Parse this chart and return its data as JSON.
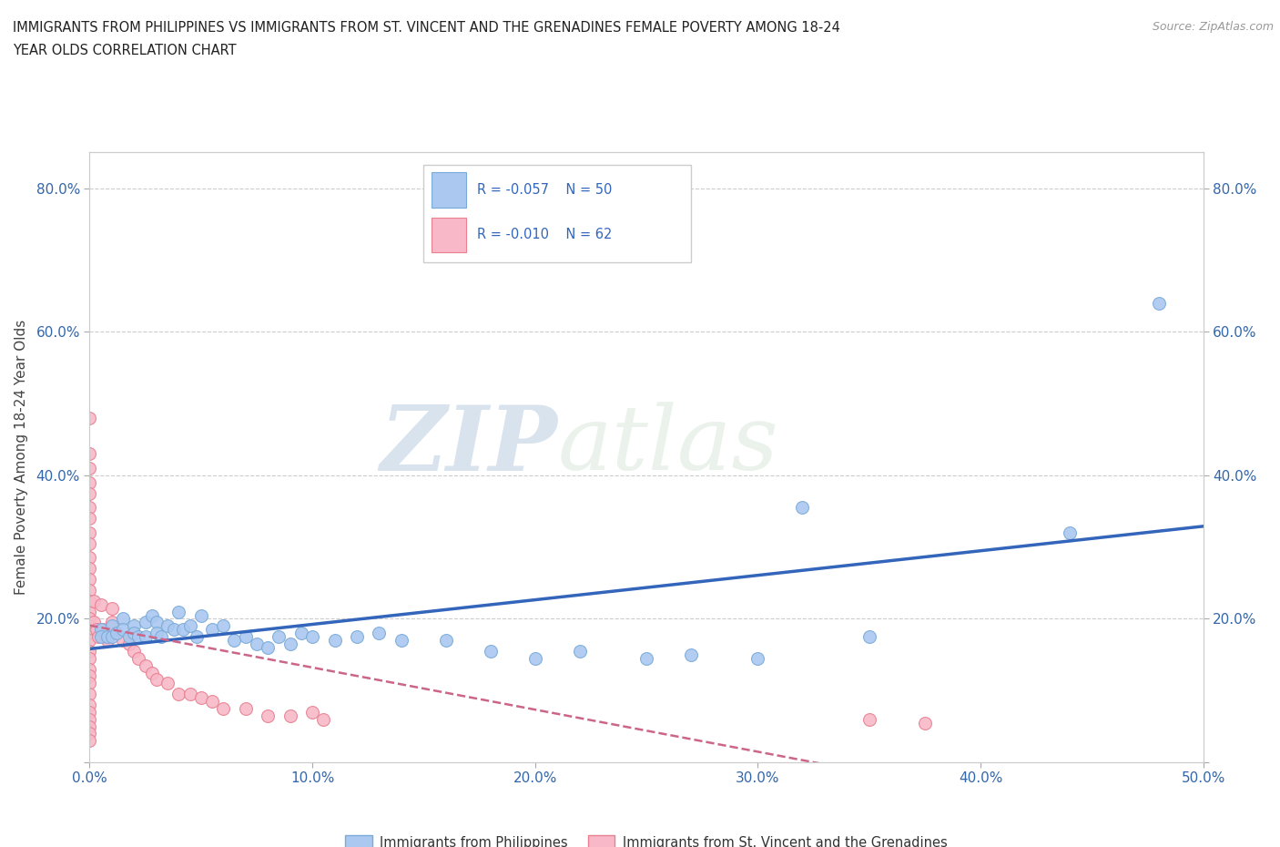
{
  "title_line1": "IMMIGRANTS FROM PHILIPPINES VS IMMIGRANTS FROM ST. VINCENT AND THE GRENADINES FEMALE POVERTY AMONG 18-24",
  "title_line2": "YEAR OLDS CORRELATION CHART",
  "source": "Source: ZipAtlas.com",
  "ylabel": "Female Poverty Among 18-24 Year Olds",
  "xlim": [
    0.0,
    0.5
  ],
  "ylim": [
    0.0,
    0.85
  ],
  "xticks": [
    0.0,
    0.1,
    0.2,
    0.3,
    0.4,
    0.5
  ],
  "yticks": [
    0.0,
    0.2,
    0.4,
    0.6,
    0.8
  ],
  "xticklabels": [
    "0.0%",
    "10.0%",
    "20.0%",
    "30.0%",
    "40.0%",
    "50.0%"
  ],
  "yticklabels": [
    "",
    "20.0%",
    "40.0%",
    "60.0%",
    "80.0%"
  ],
  "right_yticklabels": [
    "",
    "20.0%",
    "40.0%",
    "60.0%",
    "80.0%"
  ],
  "philippine_color": "#aac8f0",
  "philippine_edge": "#7aaad8",
  "stv_color": "#f8b8c8",
  "stv_edge": "#e88090",
  "trend_blue": "#3366bb",
  "trend_pink": "#cc6688",
  "R_phil": -0.057,
  "N_phil": 50,
  "R_stv": -0.01,
  "N_stv": 62,
  "watermark_zip": "ZIP",
  "watermark_atlas": "atlas",
  "legend_color": "#3366bb",
  "phil_x": [
    0.005,
    0.005,
    0.008,
    0.01,
    0.01,
    0.012,
    0.015,
    0.015,
    0.018,
    0.02,
    0.02,
    0.022,
    0.025,
    0.025,
    0.028,
    0.03,
    0.03,
    0.032,
    0.035,
    0.038,
    0.04,
    0.042,
    0.045,
    0.048,
    0.05,
    0.055,
    0.06,
    0.065,
    0.07,
    0.075,
    0.08,
    0.085,
    0.09,
    0.095,
    0.1,
    0.11,
    0.12,
    0.13,
    0.14,
    0.16,
    0.18,
    0.2,
    0.22,
    0.25,
    0.27,
    0.3,
    0.32,
    0.35,
    0.44,
    0.48
  ],
  "phil_y": [
    0.185,
    0.175,
    0.175,
    0.19,
    0.175,
    0.18,
    0.2,
    0.185,
    0.175,
    0.19,
    0.18,
    0.175,
    0.195,
    0.175,
    0.205,
    0.195,
    0.18,
    0.175,
    0.19,
    0.185,
    0.21,
    0.185,
    0.19,
    0.175,
    0.205,
    0.185,
    0.19,
    0.17,
    0.175,
    0.165,
    0.16,
    0.175,
    0.165,
    0.18,
    0.175,
    0.17,
    0.175,
    0.18,
    0.17,
    0.17,
    0.155,
    0.145,
    0.155,
    0.145,
    0.15,
    0.145,
    0.355,
    0.175,
    0.32,
    0.64
  ],
  "stv_x": [
    0.0,
    0.0,
    0.0,
    0.0,
    0.0,
    0.0,
    0.0,
    0.0,
    0.0,
    0.0,
    0.0,
    0.0,
    0.0,
    0.0,
    0.0,
    0.0,
    0.0,
    0.0,
    0.0,
    0.002,
    0.002,
    0.003,
    0.004,
    0.005,
    0.006,
    0.007,
    0.008,
    0.01,
    0.01,
    0.012,
    0.015,
    0.018,
    0.02,
    0.022,
    0.025,
    0.028,
    0.03,
    0.035,
    0.04,
    0.045,
    0.05,
    0.055,
    0.06,
    0.07,
    0.08,
    0.09,
    0.1,
    0.105,
    0.35,
    0.375,
    0.0,
    0.0,
    0.0,
    0.0,
    0.0,
    0.0,
    0.0,
    0.0,
    0.0,
    0.0,
    0.0,
    0.0
  ],
  "stv_y": [
    0.48,
    0.43,
    0.41,
    0.39,
    0.375,
    0.355,
    0.34,
    0.32,
    0.305,
    0.285,
    0.27,
    0.255,
    0.24,
    0.225,
    0.21,
    0.2,
    0.19,
    0.18,
    0.17,
    0.225,
    0.195,
    0.185,
    0.175,
    0.22,
    0.185,
    0.175,
    0.17,
    0.215,
    0.195,
    0.18,
    0.17,
    0.165,
    0.155,
    0.145,
    0.135,
    0.125,
    0.115,
    0.11,
    0.095,
    0.095,
    0.09,
    0.085,
    0.075,
    0.075,
    0.065,
    0.065,
    0.07,
    0.06,
    0.06,
    0.055,
    0.155,
    0.145,
    0.13,
    0.12,
    0.11,
    0.095,
    0.08,
    0.07,
    0.06,
    0.05,
    0.04,
    0.03
  ]
}
